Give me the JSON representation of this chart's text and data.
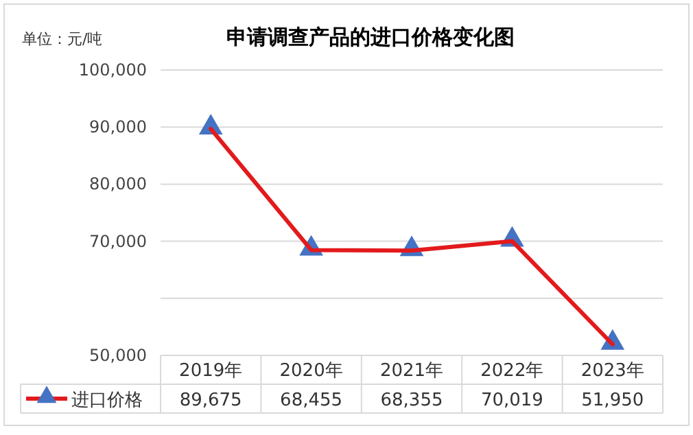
{
  "chart_data": {
    "type": "line",
    "title": "申请调查产品的进口价格变化图",
    "ylabel": "单位：元/吨",
    "categories": [
      "2019年",
      "2020年",
      "2021年",
      "2022年",
      "2023年"
    ],
    "series": [
      {
        "name": "进口价格",
        "color": "#e31a1c",
        "values": [
          89675,
          68455,
          68355,
          70019,
          51950
        ],
        "value_labels": [
          "89,675",
          "68,455",
          "68,355",
          "70,019",
          "51,950"
        ]
      }
    ],
    "ylim": [
      50000,
      100000
    ],
    "yticks": [
      {
        "value": 50000,
        "label": "50,000"
      },
      {
        "value": 60000,
        "label": null
      },
      {
        "value": 70000,
        "label": "70,000"
      },
      {
        "value": 80000,
        "label": "80,000"
      },
      {
        "value": 90000,
        "label": "90,000"
      },
      {
        "value": 100000,
        "label": "100,000"
      }
    ],
    "grid": "y",
    "marker": "triangle",
    "line_style": "solid",
    "legend": "bottom"
  }
}
